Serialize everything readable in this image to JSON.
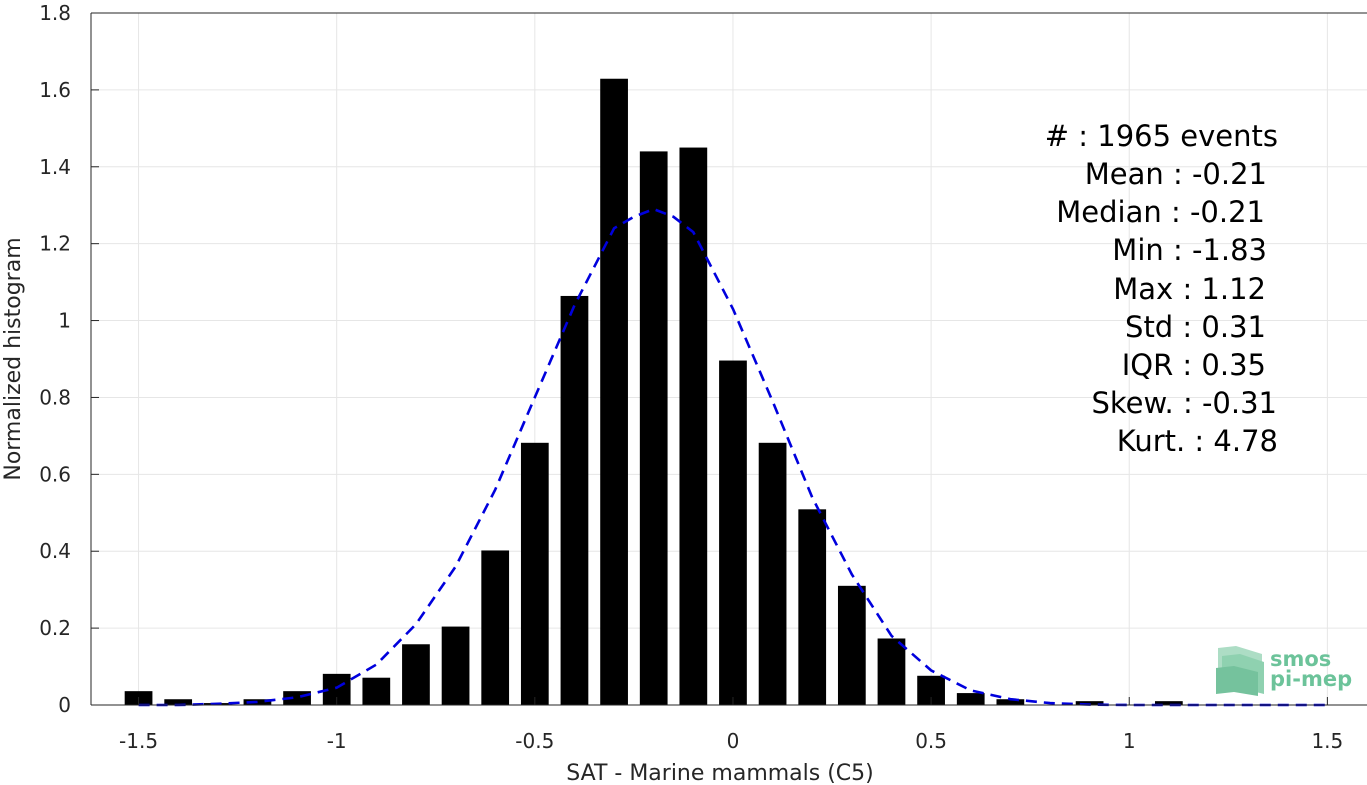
{
  "chart_data": {
    "type": "bar",
    "xlabel": "SAT - Marine mammals (C5)",
    "ylabel": "Normalized histogram",
    "xlim": [
      -1.62,
      1.6
    ],
    "ylim": [
      0,
      1.8
    ],
    "xticks": [
      -1.5,
      -1,
      -0.5,
      0,
      0.5,
      1,
      1.5
    ],
    "xtick_labels": [
      "-1.5",
      "-1",
      "-0.5",
      "0",
      "0.5",
      "1",
      "1.5"
    ],
    "yticks": [
      0,
      0.2,
      0.4,
      0.6,
      0.8,
      1,
      1.2,
      1.4,
      1.6,
      1.8
    ],
    "ytick_labels": [
      "0",
      "0.2",
      "0.4",
      "0.6",
      "0.8",
      "1",
      "1.2",
      "1.4",
      "1.6",
      "1.8"
    ],
    "grid": true,
    "bar_color": "#000000",
    "bar_width": 0.07,
    "bars": {
      "x": [
        -1.5,
        -1.4,
        -1.3,
        -1.2,
        -1.1,
        -1.0,
        -0.9,
        -0.8,
        -0.7,
        -0.6,
        -0.5,
        -0.4,
        -0.3,
        -0.2,
        -0.1,
        0.0,
        0.1,
        0.2,
        0.3,
        0.4,
        0.5,
        0.6,
        0.7,
        0.8,
        0.9,
        1.0,
        1.1
      ],
      "values": [
        0.036,
        0.015,
        0.005,
        0.015,
        0.036,
        0.081,
        0.071,
        0.158,
        0.204,
        0.402,
        0.682,
        1.064,
        1.629,
        1.44,
        1.45,
        0.896,
        0.682,
        0.509,
        0.31,
        0.173,
        0.076,
        0.031,
        0.015,
        0.0,
        0.01,
        0.0,
        0.01
      ]
    },
    "fit_curve": {
      "color": "#0000dd",
      "style": "dashed",
      "x": [
        -1.5,
        -1.4,
        -1.3,
        -1.2,
        -1.1,
        -1.0,
        -0.9,
        -0.8,
        -0.7,
        -0.6,
        -0.5,
        -0.4,
        -0.3,
        -0.25,
        -0.2,
        -0.15,
        -0.1,
        0.0,
        0.1,
        0.2,
        0.3,
        0.4,
        0.5,
        0.6,
        0.7,
        0.8,
        0.9,
        1.0,
        1.1,
        1.2,
        1.3,
        1.4,
        1.5
      ],
      "y": [
        0.0,
        0.0,
        0.003,
        0.008,
        0.02,
        0.045,
        0.105,
        0.21,
        0.36,
        0.56,
        0.8,
        1.04,
        1.24,
        1.27,
        1.29,
        1.27,
        1.23,
        1.03,
        0.79,
        0.54,
        0.34,
        0.18,
        0.09,
        0.038,
        0.015,
        0.005,
        0.001,
        0.0,
        0.0,
        0.0,
        0.0,
        0.0,
        0.0
      ]
    },
    "stats": {
      "count": "#  : 1965 events",
      "mean": "Mean : -0.21",
      "median": "Median : -0.21",
      "min": "Min : -1.83",
      "max": "Max : 1.12",
      "std": "Std : 0.31",
      "iqr": "IQR : 0.35",
      "skew": "Skew. : -0.31",
      "kurt": "Kurt. : 4.78"
    }
  },
  "logo": {
    "line1": "smos",
    "line2": "pi-mep",
    "color": "#6cc39a"
  }
}
